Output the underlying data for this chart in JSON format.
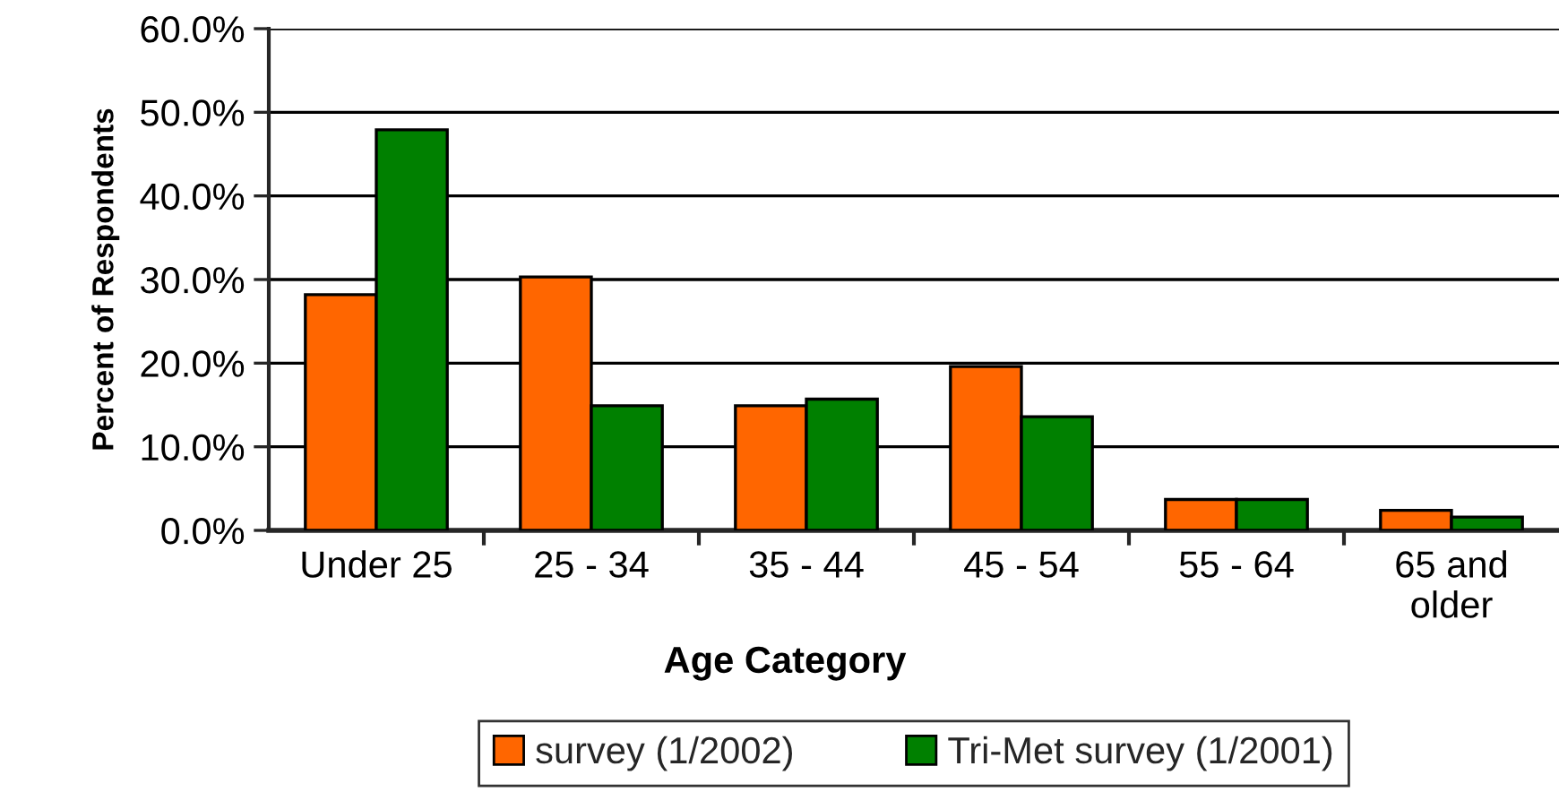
{
  "chart_data": {
    "type": "bar",
    "xlabel": "Age Category",
    "ylabel": "Percent of Respondents",
    "categories": [
      "Under 25",
      "25 - 34",
      "35 - 44",
      "45 - 54",
      "55 - 64",
      "65 and\nolder"
    ],
    "series": [
      {
        "name": "survey (1/2002)",
        "color": "#ff6600",
        "values": [
          28.2,
          30.3,
          14.9,
          19.6,
          3.7,
          2.4
        ]
      },
      {
        "name": "Tri-Met survey (1/2001)",
        "color": "#008000",
        "values": [
          47.9,
          14.9,
          15.7,
          13.6,
          3.7,
          1.6
        ]
      }
    ],
    "ylim": [
      0,
      60
    ],
    "yticks": [
      {
        "value": 0,
        "label": "0.0%"
      },
      {
        "value": 10,
        "label": "10.0%"
      },
      {
        "value": 20,
        "label": "20.0%"
      },
      {
        "value": 30,
        "label": "30.0%"
      },
      {
        "value": 40,
        "label": "40.0%"
      },
      {
        "value": 50,
        "label": "50.0%"
      },
      {
        "value": 60,
        "label": "60.0%"
      }
    ],
    "grid": "y",
    "legend": "bottom"
  }
}
